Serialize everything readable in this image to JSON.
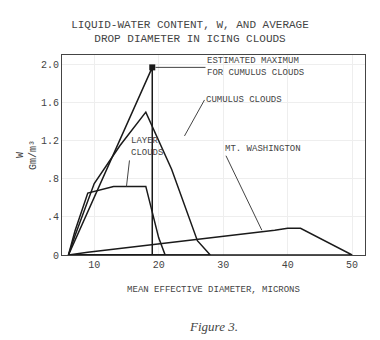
{
  "chart_data": {
    "type": "line",
    "title": "LIQUID-WATER CONTENT, W, AND AVERAGE\nDROP DIAMETER IN ICING CLOUDS",
    "xlabel": "MEAN EFFECTIVE DIAMETER, MICRONS",
    "ylabel": "W\nGm/m³",
    "figure_label": "Figure 3.",
    "xlim": [
      5,
      52
    ],
    "ylim": [
      0,
      2.1
    ],
    "xticks": [
      10,
      20,
      30,
      40,
      50
    ],
    "yticks": [
      0,
      {
        "value": 0.4,
        "label": ".4"
      },
      {
        "value": 0.8,
        "label": ".8"
      },
      1.2,
      1.6,
      {
        "value": 2.0,
        "label": "2.0"
      }
    ],
    "grid": true,
    "series": [
      {
        "type": "line",
        "color": "#1a1a1a",
        "x": [
          6,
          19,
          19,
          6
        ],
        "values": [
          0.0,
          1.97,
          0.0,
          0.0
        ]
      },
      {
        "type": "line",
        "color": "#1a1a1a",
        "x": [
          6,
          7,
          10,
          14,
          18,
          22,
          26,
          28,
          6
        ],
        "values": [
          0.0,
          0.2,
          0.75,
          1.15,
          1.5,
          0.9,
          0.15,
          0.0,
          0.0
        ]
      },
      {
        "type": "line",
        "color": "#1a1a1a",
        "x": [
          6,
          7,
          9,
          13,
          18,
          20,
          21,
          6
        ],
        "values": [
          0.0,
          0.25,
          0.65,
          0.72,
          0.72,
          0.18,
          0.0,
          0.0
        ]
      },
      {
        "type": "line",
        "color": "#1a1a1a",
        "x": [
          6,
          9,
          38,
          40,
          41,
          42,
          50,
          6
        ],
        "values": [
          0.0,
          0.03,
          0.26,
          0.28,
          0.28,
          0.28,
          0.0,
          0.0
        ]
      },
      {
        "type": "scatter",
        "marker": "square",
        "color": "#1a1a1a",
        "x": [
          19
        ],
        "values": [
          1.97
        ]
      }
    ],
    "annotations": [
      {
        "text": "ESTIMATED MAXIMUM\nFOR CUMULUS CLOUDS",
        "x": 19.5,
        "y": 1.97
      },
      {
        "text": "CUMULUS CLOUDS",
        "x": 24,
        "y": 1.25
      },
      {
        "text": "LAYER\nCLOUDS",
        "x": 15,
        "y": 0.72
      },
      {
        "text": "MT. WASHINGTON",
        "x": 36,
        "y": 0.26
      }
    ]
  }
}
